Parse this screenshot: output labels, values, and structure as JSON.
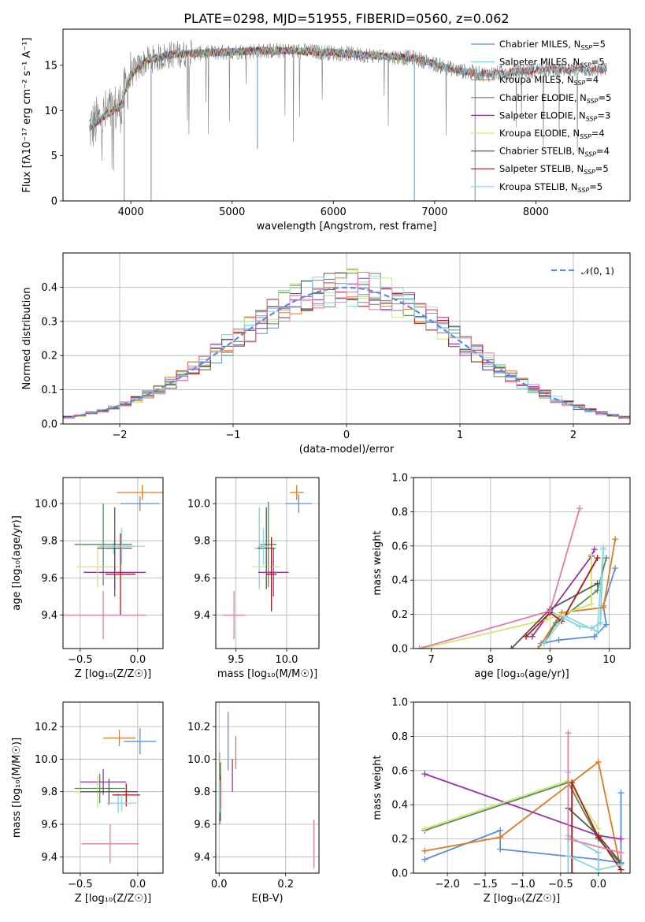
{
  "colors": {
    "Chabrier MILES": "#5b8dde",
    "Salpeter MILES": "#7fd3d8",
    "Kroupa MILES": "#e07b22",
    "Chabrier ELODIE": "#5a8a5a",
    "Salpeter ELODIE": "#9b2fae",
    "Kroupa ELODIE": "#cfe86a",
    "Chabrier STELIB": "#555555",
    "Salpeter STELIB": "#b01818",
    "Kroupa STELIB": "#8ad8e0",
    "data": "#7f7f7f",
    "pink": "#e57ca8",
    "normal": "#5b8dde"
  },
  "chart_data": [
    {
      "type": "line",
      "title": "PLATE=0298, MJD=51955, FIBERID=0560, z=0.062",
      "xlabel": "wavelength [Angstrom, rest frame]",
      "ylabel": "Flux [fλ10⁻¹⁷ erg cm⁻² s⁻¹ A⁻¹]",
      "xlim": [
        3330,
        8930
      ],
      "ylim": [
        0,
        19
      ],
      "xticks": [
        "4000",
        "5000",
        "6000",
        "7000",
        "8000"
      ],
      "yticks": [
        "0",
        "5",
        "10",
        "15"
      ],
      "legend_position": "top-right",
      "legend": [
        {
          "name": "Chabrier MILES",
          "label": "Chabrier MILES, N",
          "sub": "SSP",
          "tail": "=5",
          "color": "#5b8dde"
        },
        {
          "name": "Salpeter MILES",
          "label": "Salpeter MILES, N",
          "sub": "SSP",
          "tail": "=5",
          "color": "#7fd3d8"
        },
        {
          "name": "Kroupa MILES",
          "label": "Kroupa MILES, N",
          "sub": "SSP",
          "tail": "=4",
          "color": "#e07b22"
        },
        {
          "name": "Chabrier ELODIE",
          "label": "Chabrier ELODIE, N",
          "sub": "SSP",
          "tail": "=5",
          "color": "#5a8a5a"
        },
        {
          "name": "Salpeter ELODIE",
          "label": "Salpeter ELODIE, N",
          "sub": "SSP",
          "tail": "=3",
          "color": "#9b2fae"
        },
        {
          "name": "Kroupa ELODIE",
          "label": "Kroupa ELODIE, N",
          "sub": "SSP",
          "tail": "=4",
          "color": "#cfe86a"
        },
        {
          "name": "Chabrier STELIB",
          "label": "Chabrier STELIB, N",
          "sub": "SSP",
          "tail": "=4",
          "color": "#555555"
        },
        {
          "name": "Salpeter STELIB",
          "label": "Salpeter STELIB, N",
          "sub": "SSP",
          "tail": "=5",
          "color": "#b01818"
        },
        {
          "name": "Kroupa STELIB",
          "label": "Kroupa STELIB, N",
          "sub": "SSP",
          "tail": "=5",
          "color": "#8ad8e0"
        }
      ],
      "continuum_knots": [
        [
          3590,
          8.0
        ],
        [
          3750,
          9.5
        ],
        [
          3900,
          10.5
        ],
        [
          4000,
          14.0
        ],
        [
          4150,
          15.5
        ],
        [
          4400,
          16.2
        ],
        [
          4800,
          16.4
        ],
        [
          5200,
          16.6
        ],
        [
          5600,
          16.6
        ],
        [
          6000,
          16.4
        ],
        [
          6500,
          16.0
        ],
        [
          6800,
          15.8
        ],
        [
          7200,
          14.5
        ],
        [
          7500,
          14.0
        ],
        [
          7800,
          14.3
        ],
        [
          8200,
          14.6
        ],
        [
          8700,
          14.5
        ]
      ],
      "dips": [
        [
          3934,
          0
        ],
        [
          4200,
          0
        ],
        [
          5250,
          5.8
        ],
        [
          6800,
          0
        ],
        [
          7400,
          0
        ]
      ]
    },
    {
      "type": "bar",
      "xlabel": "(data-model)/error",
      "ylabel": "Normed distribution",
      "xlim": [
        -2.5,
        2.5
      ],
      "ylim": [
        0,
        0.5
      ],
      "xticks": [
        "−2",
        "−1",
        "0",
        "1",
        "2"
      ],
      "yticks": [
        "0.0",
        "0.1",
        "0.2",
        "0.3",
        "0.4"
      ],
      "grid": true,
      "legend_label": "𝒩(0, 1)",
      "legend_position": "top-right",
      "bin_width": 0.1,
      "normal": {
        "mean": 0,
        "sd": 1
      }
    },
    {
      "type": "scatter",
      "xlabel": "Z [log₁₀(Z/Z☉)]",
      "ylabel": "age  [log₁₀(age/yr)]",
      "xlim": [
        -0.65,
        0.22
      ],
      "ylim": [
        9.22,
        10.14
      ],
      "xticks": [
        "−0.5",
        "0.0"
      ],
      "yticks": [
        "9.4",
        "9.6",
        "9.8",
        "10.0"
      ],
      "grid": true,
      "points": [
        {
          "x": 0.02,
          "y": 10.0,
          "xerr": 0.17,
          "yerr": 0.04,
          "series": "Chabrier MILES"
        },
        {
          "x": -0.21,
          "y": 9.76,
          "xerr": 0.07,
          "yerr": 0.03,
          "series": "Salpeter MILES"
        },
        {
          "x": 0.04,
          "y": 10.06,
          "xerr": 0.22,
          "yerr": 0.04,
          "series": "Kroupa MILES"
        },
        {
          "x": -0.3,
          "y": 9.78,
          "xerr": 0.25,
          "yerr": 0.22,
          "series": "Chabrier ELODIE"
        },
        {
          "x": -0.2,
          "y": 9.63,
          "xerr": 0.27,
          "yerr": 0.13,
          "series": "Salpeter ELODIE"
        },
        {
          "x": -0.35,
          "y": 9.66,
          "xerr": 0.18,
          "yerr": 0.11,
          "series": "Kroupa ELODIE"
        },
        {
          "x": -0.2,
          "y": 9.76,
          "xerr": 0.15,
          "yerr": 0.22,
          "series": "Chabrier STELIB"
        },
        {
          "x": -0.15,
          "y": 9.62,
          "xerr": 0.13,
          "yerr": 0.22,
          "series": "Salpeter STELIB"
        },
        {
          "x": -0.14,
          "y": 9.77,
          "xerr": 0.2,
          "yerr": 0.1,
          "series": "Kroupa STELIB"
        },
        {
          "x": -0.3,
          "y": 9.4,
          "xerr": 0.37,
          "yerr": 0.13,
          "series": "pink"
        }
      ]
    },
    {
      "type": "scatter",
      "xlabel": "mass [log₁₀(M/M☉)]",
      "ylabel": "",
      "xlim": [
        9.3,
        10.32
      ],
      "ylim": [
        9.22,
        10.14
      ],
      "xticks": [
        "9.5",
        "10.0"
      ],
      "yticks": [
        "9.4",
        "9.6",
        "9.8",
        "10.0"
      ],
      "grid": true,
      "points": [
        {
          "x": 10.12,
          "y": 10.0,
          "xerr": 0.13,
          "yerr": 0.05,
          "series": "Chabrier MILES"
        },
        {
          "x": 9.73,
          "y": 9.76,
          "xerr": 0.05,
          "yerr": 0.22,
          "series": "Salpeter MILES"
        },
        {
          "x": 10.1,
          "y": 10.06,
          "xerr": 0.07,
          "yerr": 0.04,
          "series": "Kroupa MILES"
        },
        {
          "x": 9.82,
          "y": 9.78,
          "xerr": 0.08,
          "yerr": 0.23,
          "series": "Chabrier ELODIE"
        },
        {
          "x": 9.87,
          "y": 9.63,
          "xerr": 0.15,
          "yerr": 0.13,
          "series": "Salpeter ELODIE"
        },
        {
          "x": 9.8,
          "y": 9.66,
          "xerr": 0.14,
          "yerr": 0.11,
          "series": "Kroupa ELODIE"
        },
        {
          "x": 9.8,
          "y": 9.76,
          "xerr": 0.09,
          "yerr": 0.22,
          "series": "Chabrier STELIB"
        },
        {
          "x": 9.85,
          "y": 9.62,
          "xerr": 0.05,
          "yerr": 0.2,
          "series": "Salpeter STELIB"
        },
        {
          "x": 9.77,
          "y": 9.77,
          "xerr": 0.05,
          "yerr": 0.1,
          "series": "Kroupa STELIB"
        },
        {
          "x": 9.48,
          "y": 9.4,
          "xerr": 0.11,
          "yerr": 0.13,
          "series": "pink"
        }
      ]
    },
    {
      "type": "line",
      "xlabel": "age  [log₁₀(age/yr)]",
      "ylabel": "mass weight",
      "xlim": [
        6.7,
        10.35
      ],
      "ylim": [
        0,
        1
      ],
      "xticks": [
        "7",
        "8",
        "9",
        "10"
      ],
      "yticks": [
        "0.0",
        "0.2",
        "0.4",
        "0.6",
        "0.8",
        "1.0"
      ],
      "grid": true,
      "series": [
        {
          "name": "Chabrier MILES",
          "points": [
            [
              8.85,
              0.03
            ],
            [
              9.15,
              0.05
            ],
            [
              9.75,
              0.07
            ],
            [
              9.95,
              0.14
            ],
            [
              9.9,
              0.25
            ],
            [
              10.1,
              0.47
            ]
          ]
        },
        {
          "name": "Salpeter MILES",
          "points": [
            [
              9.0,
              0.22
            ],
            [
              9.5,
              0.13
            ],
            [
              9.7,
              0.12
            ],
            [
              9.85,
              0.15
            ],
            [
              9.9,
              0.58
            ]
          ]
        },
        {
          "name": "Kroupa MILES",
          "points": [
            [
              8.8,
              0.0
            ],
            [
              9.2,
              0.21
            ],
            [
              9.9,
              0.24
            ],
            [
              10.1,
              0.64
            ]
          ]
        },
        {
          "name": "Chabrier ELODIE",
          "points": [
            [
              8.9,
              0.03
            ],
            [
              9.1,
              0.15
            ],
            [
              9.8,
              0.34
            ],
            [
              9.95,
              0.53
            ]
          ]
        },
        {
          "name": "Salpeter ELODIE",
          "points": [
            [
              8.7,
              0.07
            ],
            [
              9.7,
              0.54
            ],
            [
              9.75,
              0.58
            ]
          ]
        },
        {
          "name": "Kroupa ELODIE",
          "points": [
            [
              6.85,
              0.0
            ],
            [
              8.95,
              0.17
            ],
            [
              9.7,
              0.26
            ],
            [
              9.7,
              0.55
            ]
          ]
        },
        {
          "name": "Chabrier STELIB",
          "points": [
            [
              8.35,
              0.0
            ],
            [
              9.0,
              0.23
            ],
            [
              9.8,
              0.38
            ]
          ]
        },
        {
          "name": "Salpeter STELIB",
          "points": [
            [
              8.6,
              0.07
            ],
            [
              9.0,
              0.21
            ],
            [
              9.2,
              0.16
            ],
            [
              9.8,
              0.53
            ]
          ]
        },
        {
          "name": "Kroupa STELIB",
          "points": [
            [
              8.9,
              0.03
            ],
            [
              9.25,
              0.19
            ],
            [
              9.8,
              0.1
            ],
            [
              9.9,
              0.59
            ]
          ]
        },
        {
          "name": "pink",
          "points": [
            [
              6.8,
              0.0
            ],
            [
              9.0,
              0.22
            ],
            [
              9.5,
              0.82
            ]
          ]
        }
      ]
    },
    {
      "type": "scatter",
      "xlabel": "Z [log₁₀(Z/Z☉)]",
      "ylabel": "mass [log₁₀(M/M☉)]",
      "xlim": [
        -0.65,
        0.22
      ],
      "ylim": [
        9.3,
        10.35
      ],
      "xticks": [
        "−0.5",
        "0.0"
      ],
      "yticks": [
        "9.4",
        "9.6",
        "9.8",
        "10.0",
        "10.2"
      ],
      "grid": true,
      "points": [
        {
          "x": 0.02,
          "y": 10.11,
          "xerr": 0.14,
          "yerr": 0.08,
          "series": "Chabrier MILES"
        },
        {
          "x": -0.17,
          "y": 9.73,
          "xerr": 0.1,
          "yerr": 0.06,
          "series": "Salpeter MILES"
        },
        {
          "x": -0.16,
          "y": 10.13,
          "xerr": 0.14,
          "yerr": 0.05,
          "series": "Kroupa MILES"
        },
        {
          "x": -0.33,
          "y": 9.82,
          "xerr": 0.22,
          "yerr": 0.09,
          "series": "Chabrier ELODIE"
        },
        {
          "x": -0.3,
          "y": 9.86,
          "xerr": 0.2,
          "yerr": 0.08,
          "series": "Salpeter ELODIE"
        },
        {
          "x": -0.35,
          "y": 9.8,
          "xerr": 0.2,
          "yerr": 0.1,
          "series": "Kroupa ELODIE"
        },
        {
          "x": -0.25,
          "y": 9.8,
          "xerr": 0.25,
          "yerr": 0.08,
          "series": "Chabrier STELIB"
        },
        {
          "x": -0.1,
          "y": 9.78,
          "xerr": 0.12,
          "yerr": 0.07,
          "series": "Salpeter STELIB"
        },
        {
          "x": -0.14,
          "y": 9.73,
          "xerr": 0.13,
          "yerr": 0.05,
          "series": "Kroupa STELIB"
        },
        {
          "x": -0.24,
          "y": 9.48,
          "xerr": 0.25,
          "yerr": 0.12,
          "series": "pink"
        }
      ]
    },
    {
      "type": "scatter",
      "xlabel": "E(B-V)",
      "ylabel": "",
      "xlim": [
        -0.01,
        0.3
      ],
      "ylim": [
        9.3,
        10.35
      ],
      "xticks": [
        "0.0",
        "0.2"
      ],
      "yticks": [
        "9.4",
        "9.6",
        "9.8",
        "10.0",
        "10.2"
      ],
      "grid": true,
      "points": [
        {
          "x": 0.027,
          "y": 10.11,
          "yerr": 0.18,
          "series": "Chabrier MILES"
        },
        {
          "x": 0.003,
          "y": 9.73,
          "yerr": 0.1,
          "series": "Salpeter MILES"
        },
        {
          "x": 0.05,
          "y": 10.04,
          "yerr": 0.1,
          "series": "Kroupa MILES"
        },
        {
          "x": 0.002,
          "y": 9.82,
          "yerr": 0.22,
          "series": "Chabrier ELODIE"
        },
        {
          "x": 0.04,
          "y": 9.9,
          "yerr": 0.1,
          "series": "Salpeter ELODIE"
        },
        {
          "x": 0.003,
          "y": 9.92,
          "yerr": 0.12,
          "series": "Kroupa ELODIE"
        },
        {
          "x": 0.004,
          "y": 9.8,
          "yerr": 0.18,
          "series": "Chabrier STELIB"
        },
        {
          "x": 0.004,
          "y": 9.8,
          "yerr": 0.1,
          "series": "Salpeter STELIB"
        },
        {
          "x": 0.002,
          "y": 9.77,
          "yerr": 0.1,
          "series": "Kroupa STELIB"
        },
        {
          "x": 0.285,
          "y": 9.48,
          "yerr": 0.15,
          "series": "pink"
        }
      ]
    },
    {
      "type": "line",
      "xlabel": "Z [log₁₀(Z/Z☉)]",
      "ylabel": "mass weight",
      "xlim": [
        -2.45,
        0.42
      ],
      "ylim": [
        0,
        1
      ],
      "xticks": [
        "−2.0",
        "−1.5",
        "−1.0",
        "−0.5",
        "0.0"
      ],
      "yticks": [
        "0.0",
        "0.2",
        "0.4",
        "0.6",
        "0.8",
        "1.0"
      ],
      "grid": true,
      "series": [
        {
          "name": "Chabrier MILES",
          "points": [
            [
              -2.3,
              0.08
            ],
            [
              -1.3,
              0.25
            ],
            [
              -1.3,
              0.14
            ],
            [
              0.0,
              0.08
            ],
            [
              0.3,
              0.06
            ],
            [
              0.3,
              0.47
            ]
          ]
        },
        {
          "name": "Salpeter MILES",
          "points": [
            [
              -0.4,
              0.0
            ],
            [
              -0.4,
              0.22
            ],
            [
              0.0,
              0.12
            ],
            [
              0.0,
              0.0
            ]
          ]
        },
        {
          "name": "Kroupa MILES",
          "points": [
            [
              -2.3,
              0.13
            ],
            [
              -1.3,
              0.21
            ],
            [
              0.0,
              0.65
            ],
            [
              0.3,
              0.02
            ]
          ]
        },
        {
          "name": "Chabrier ELODIE",
          "points": [
            [
              -2.3,
              0.25
            ],
            [
              -0.4,
              0.53
            ],
            [
              0.0,
              0.2
            ],
            [
              0.3,
              0.05
            ]
          ]
        },
        {
          "name": "Salpeter ELODIE",
          "points": [
            [
              -2.3,
              0.58
            ],
            [
              0.0,
              0.22
            ],
            [
              0.3,
              0.2
            ]
          ]
        },
        {
          "name": "Kroupa ELODIE",
          "points": [
            [
              -2.3,
              0.26
            ],
            [
              -0.4,
              0.54
            ],
            [
              0.0,
              0.26
            ]
          ]
        },
        {
          "name": "Chabrier STELIB",
          "points": [
            [
              -0.4,
              0.38
            ],
            [
              0.0,
              0.22
            ],
            [
              0.3,
              0.06
            ]
          ]
        },
        {
          "name": "Salpeter STELIB",
          "points": [
            [
              -0.35,
              0.0
            ],
            [
              -0.35,
              0.53
            ],
            [
              0.0,
              0.21
            ],
            [
              0.3,
              0.02
            ]
          ]
        },
        {
          "name": "Kroupa STELIB",
          "points": [
            [
              -0.4,
              0.59
            ],
            [
              -0.4,
              0.1
            ],
            [
              0.0,
              0.02
            ],
            [
              0.3,
              0.05
            ]
          ]
        },
        {
          "name": "pink",
          "points": [
            [
              -0.4,
              0.82
            ],
            [
              -0.4,
              0.2
            ],
            [
              0.3,
              0.12
            ]
          ]
        }
      ]
    }
  ]
}
